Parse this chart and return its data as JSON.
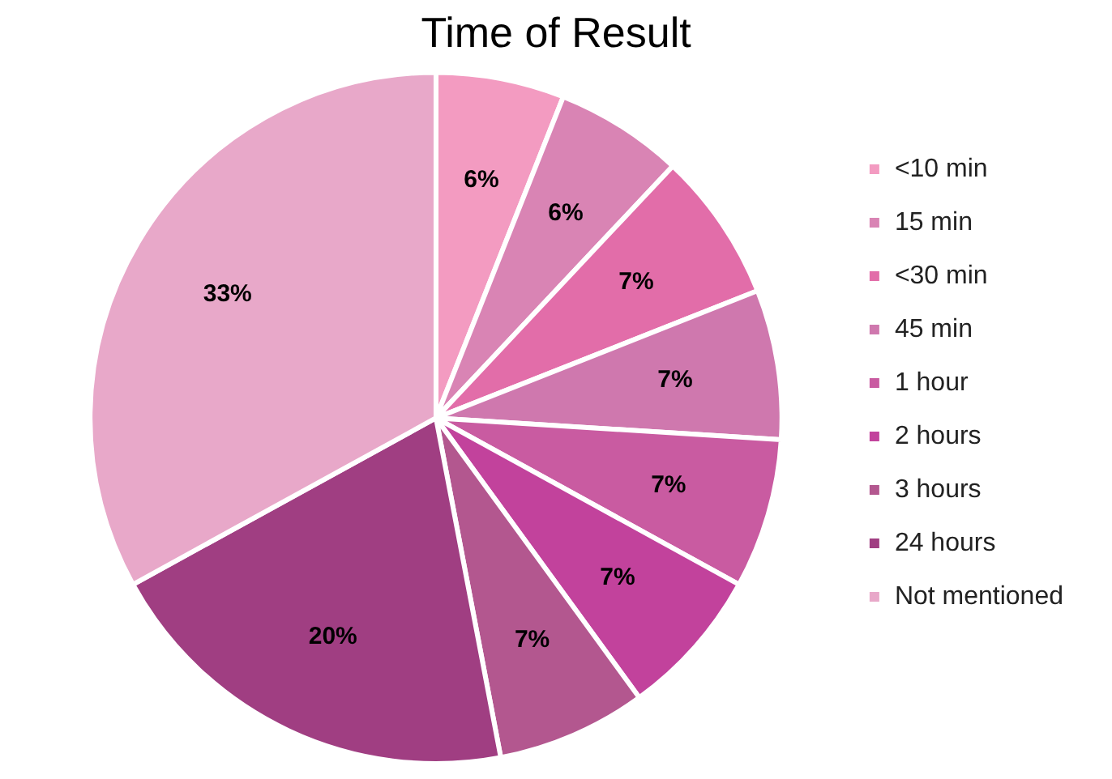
{
  "chart_data": {
    "type": "pie",
    "title": "Time of Result",
    "categories": [
      "<10 min",
      "15 min",
      "<30 min",
      "45 min",
      "1 hour",
      "2 hours",
      "3 hours",
      "24 hours",
      "Not mentioned"
    ],
    "values": [
      6,
      6,
      7,
      7,
      7,
      7,
      7,
      20,
      33
    ],
    "value_labels": [
      "6%",
      "6%",
      "7%",
      "7%",
      "7%",
      "7%",
      "7%",
      "20%",
      "33%"
    ],
    "colors": [
      "#f39bc1",
      "#d984b4",
      "#e26da9",
      "#cf78ae",
      "#c95ba1",
      "#c2429c",
      "#b3578f",
      "#a03e82",
      "#e8a8c9"
    ],
    "legend": "right"
  }
}
